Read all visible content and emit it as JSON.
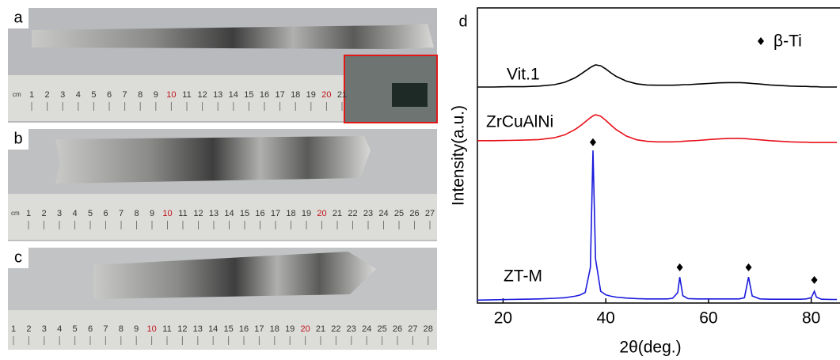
{
  "photos": [
    {
      "label": "a",
      "unit": "cm",
      "ruler": [
        1,
        2,
        3,
        4,
        5,
        6,
        7,
        8,
        9,
        10,
        11,
        12,
        13,
        14,
        15,
        16,
        17,
        18,
        19,
        20,
        21
      ]
    },
    {
      "label": "b",
      "unit": "cm",
      "ruler": [
        1,
        2,
        3,
        4,
        5,
        6,
        7,
        8,
        9,
        10,
        11,
        12,
        13,
        14,
        15,
        16,
        17,
        18,
        19,
        20,
        21,
        22,
        23,
        24,
        25,
        26,
        27
      ]
    },
    {
      "label": "c",
      "ruler": [
        1,
        2,
        3,
        4,
        5,
        6,
        7,
        8,
        9,
        10,
        11,
        12,
        13,
        14,
        15,
        16,
        17,
        18,
        19,
        20,
        21,
        22,
        23,
        24,
        25,
        26,
        27,
        28
      ]
    }
  ],
  "chart_data": {
    "type": "line",
    "panel": "d",
    "xlabel": "2θ(deg.)",
    "ylabel": "Intensity(a.u.)",
    "x": [
      15,
      18,
      21,
      24,
      27,
      30,
      32,
      34,
      35,
      36,
      37,
      37.5,
      38,
      39,
      40,
      41,
      42,
      44,
      46,
      48,
      50,
      52,
      53,
      54,
      54.4,
      55,
      56,
      58,
      60,
      62,
      64,
      66,
      67,
      67.8,
      68.5,
      70,
      72,
      74,
      76,
      78,
      79,
      80,
      80.6,
      81,
      82,
      84,
      85
    ],
    "series": [
      {
        "name": "Vit.1",
        "color": "#000000",
        "values": [
          73.2,
          73.2,
          73.3,
          73.3,
          73.5,
          74.0,
          74.8,
          76.3,
          77.4,
          78.6,
          79.8,
          80.3,
          80.7,
          80.4,
          79.3,
          78.0,
          76.8,
          75.2,
          74.3,
          73.9,
          73.8,
          73.8,
          73.8,
          73.9,
          73.9,
          74.0,
          74.0,
          74.2,
          74.4,
          74.6,
          74.7,
          74.7,
          74.6,
          74.5,
          74.4,
          74.2,
          73.9,
          73.7,
          73.5,
          73.4,
          73.4,
          73.3,
          73.3,
          73.3,
          73.2,
          73.2,
          73.2
        ]
      },
      {
        "name": "ZrCuAlNi",
        "color": "#e8101a",
        "values": [
          55.0,
          55.0,
          55.1,
          55.2,
          55.4,
          56.0,
          57.0,
          58.8,
          60.0,
          61.4,
          62.8,
          63.4,
          63.8,
          63.3,
          61.9,
          60.3,
          58.8,
          56.6,
          55.3,
          54.8,
          54.6,
          54.6,
          54.6,
          54.7,
          54.7,
          54.8,
          54.9,
          55.1,
          55.4,
          55.6,
          55.8,
          55.8,
          55.7,
          55.6,
          55.5,
          55.3,
          55.0,
          54.8,
          54.6,
          54.5,
          54.5,
          54.4,
          54.4,
          54.4,
          54.4,
          54.4,
          54.4
        ]
      },
      {
        "name": "ZT-M",
        "color": "#1a1adc",
        "values": [
          1.0,
          1.1,
          1.2,
          1.3,
          1.4,
          1.6,
          1.8,
          2.3,
          2.7,
          3.6,
          12.0,
          51.7,
          15.0,
          4.0,
          2.8,
          2.3,
          2.0,
          1.7,
          1.5,
          1.4,
          1.4,
          1.4,
          1.6,
          3.5,
          8.8,
          2.5,
          1.5,
          1.4,
          1.4,
          1.4,
          1.4,
          1.4,
          1.8,
          8.8,
          2.4,
          1.4,
          1.3,
          1.3,
          1.3,
          1.3,
          1.4,
          1.8,
          4.0,
          2.0,
          1.3,
          1.2,
          1.2
        ]
      }
    ],
    "peak_markers": {
      "name": "β-Ti",
      "x": [
        37.5,
        54.4,
        67.8,
        80.6
      ],
      "y": [
        54.5,
        12.1,
        12.1,
        7.8
      ]
    },
    "xlim": [
      15,
      85.6
    ],
    "ylim": [
      0,
      100
    ],
    "xticks": [
      20,
      40,
      60,
      80
    ]
  }
}
